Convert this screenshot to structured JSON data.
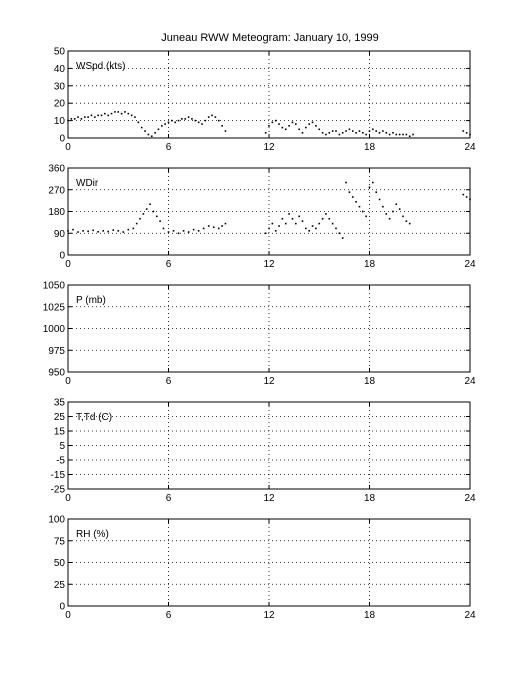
{
  "title": "Juneau RWW Meteogram:   January 10, 1999",
  "chart_data": [
    {
      "type": "scatter",
      "panel_label": "WSpd (kts)",
      "xlim": [
        0,
        24
      ],
      "x_ticks": [
        0,
        6,
        12,
        18,
        24
      ],
      "ylim": [
        0,
        50
      ],
      "y_ticks": [
        0,
        10,
        20,
        30,
        40,
        50
      ],
      "grid": true,
      "series": [
        {
          "points": [
            [
              0.0,
              10
            ],
            [
              0.2,
              11
            ],
            [
              0.4,
              11
            ],
            [
              0.6,
              12
            ],
            [
              0.8,
              11
            ],
            [
              1.0,
              12
            ],
            [
              1.2,
              12
            ],
            [
              1.4,
              13
            ],
            [
              1.6,
              12
            ],
            [
              1.8,
              13
            ],
            [
              2.0,
              13
            ],
            [
              2.2,
              14
            ],
            [
              2.4,
              13
            ],
            [
              2.6,
              14
            ],
            [
              2.8,
              15
            ],
            [
              3.0,
              15
            ],
            [
              3.2,
              14
            ],
            [
              3.4,
              15
            ],
            [
              3.6,
              14
            ],
            [
              3.8,
              13
            ],
            [
              4.0,
              12
            ],
            [
              4.2,
              9
            ],
            [
              4.4,
              6
            ],
            [
              4.6,
              4
            ],
            [
              4.8,
              2
            ],
            [
              5.0,
              1
            ],
            [
              5.2,
              3
            ],
            [
              5.4,
              5
            ],
            [
              5.6,
              7
            ],
            [
              5.8,
              8
            ],
            [
              6.0,
              9
            ],
            [
              6.2,
              10
            ],
            [
              6.4,
              9
            ],
            [
              6.6,
              10
            ],
            [
              6.8,
              11
            ],
            [
              7.0,
              11
            ],
            [
              7.2,
              12
            ],
            [
              7.4,
              11
            ],
            [
              7.6,
              10
            ],
            [
              7.8,
              9
            ],
            [
              8.0,
              8
            ],
            [
              8.2,
              10
            ],
            [
              8.4,
              12
            ],
            [
              8.6,
              13
            ],
            [
              8.8,
              12
            ],
            [
              9.0,
              10
            ],
            [
              9.2,
              7
            ],
            [
              9.4,
              4
            ],
            [
              11.8,
              3
            ],
            [
              12.0,
              7
            ],
            [
              12.2,
              9
            ],
            [
              12.4,
              10
            ],
            [
              12.6,
              8
            ],
            [
              12.8,
              6
            ],
            [
              13.0,
              5
            ],
            [
              13.2,
              7
            ],
            [
              13.4,
              9
            ],
            [
              13.6,
              8
            ],
            [
              13.8,
              5
            ],
            [
              14.0,
              3
            ],
            [
              14.2,
              6
            ],
            [
              14.4,
              8
            ],
            [
              14.6,
              9
            ],
            [
              14.8,
              7
            ],
            [
              15.0,
              5
            ],
            [
              15.2,
              3
            ],
            [
              15.4,
              2
            ],
            [
              15.6,
              3
            ],
            [
              15.8,
              4
            ],
            [
              16.0,
              4
            ],
            [
              16.2,
              2
            ],
            [
              16.4,
              3
            ],
            [
              16.6,
              4
            ],
            [
              16.8,
              5
            ],
            [
              17.0,
              4
            ],
            [
              17.2,
              3
            ],
            [
              17.4,
              4
            ],
            [
              17.6,
              3
            ],
            [
              17.8,
              2
            ],
            [
              18.0,
              4
            ],
            [
              18.2,
              5
            ],
            [
              18.4,
              4
            ],
            [
              18.6,
              3
            ],
            [
              18.8,
              4
            ],
            [
              19.0,
              3
            ],
            [
              19.2,
              2
            ],
            [
              19.4,
              3
            ],
            [
              19.6,
              2
            ],
            [
              19.8,
              2
            ],
            [
              20.0,
              2
            ],
            [
              20.2,
              2
            ],
            [
              20.4,
              1
            ],
            [
              20.6,
              2
            ],
            [
              23.6,
              4
            ],
            [
              23.8,
              3
            ],
            [
              24.0,
              2
            ]
          ]
        }
      ]
    },
    {
      "type": "scatter",
      "panel_label": "WDir",
      "xlim": [
        0,
        24
      ],
      "x_ticks": [
        0,
        6,
        12,
        18,
        24
      ],
      "ylim": [
        0,
        360
      ],
      "y_ticks": [
        0,
        90,
        180,
        270,
        360
      ],
      "grid": true,
      "series": [
        {
          "points": [
            [
              0.0,
              100
            ],
            [
              0.3,
              105
            ],
            [
              0.6,
              95
            ],
            [
              0.9,
              100
            ],
            [
              1.2,
              98
            ],
            [
              1.5,
              102
            ],
            [
              1.8,
              96
            ],
            [
              2.1,
              100
            ],
            [
              2.4,
              97
            ],
            [
              2.7,
              103
            ],
            [
              3.0,
              100
            ],
            [
              3.3,
              95
            ],
            [
              3.6,
              105
            ],
            [
              3.9,
              110
            ],
            [
              4.1,
              130
            ],
            [
              4.3,
              150
            ],
            [
              4.5,
              170
            ],
            [
              4.7,
              190
            ],
            [
              4.9,
              210
            ],
            [
              5.1,
              180
            ],
            [
              5.3,
              160
            ],
            [
              5.5,
              140
            ],
            [
              5.7,
              110
            ],
            [
              6.0,
              95
            ],
            [
              6.3,
              100
            ],
            [
              6.6,
              90
            ],
            [
              6.9,
              100
            ],
            [
              7.2,
              95
            ],
            [
              7.5,
              105
            ],
            [
              7.8,
              100
            ],
            [
              8.1,
              110
            ],
            [
              8.4,
              120
            ],
            [
              8.7,
              115
            ],
            [
              9.0,
              110
            ],
            [
              9.2,
              120
            ],
            [
              9.4,
              130
            ],
            [
              11.8,
              90
            ],
            [
              12.0,
              110
            ],
            [
              12.2,
              130
            ],
            [
              12.4,
              100
            ],
            [
              12.6,
              120
            ],
            [
              12.8,
              150
            ],
            [
              13.0,
              130
            ],
            [
              13.2,
              170
            ],
            [
              13.4,
              150
            ],
            [
              13.6,
              130
            ],
            [
              13.8,
              160
            ],
            [
              14.0,
              140
            ],
            [
              14.2,
              110
            ],
            [
              14.4,
              100
            ],
            [
              14.6,
              120
            ],
            [
              14.8,
              110
            ],
            [
              15.0,
              130
            ],
            [
              15.2,
              150
            ],
            [
              15.4,
              170
            ],
            [
              15.6,
              150
            ],
            [
              15.8,
              130
            ],
            [
              16.0,
              110
            ],
            [
              16.2,
              90
            ],
            [
              16.4,
              70
            ],
            [
              16.6,
              300
            ],
            [
              16.8,
              260
            ],
            [
              17.0,
              240
            ],
            [
              17.2,
              220
            ],
            [
              17.4,
              200
            ],
            [
              17.6,
              180
            ],
            [
              17.8,
              160
            ],
            [
              18.0,
              280
            ],
            [
              18.2,
              300
            ],
            [
              18.4,
              260
            ],
            [
              18.6,
              230
            ],
            [
              18.8,
              200
            ],
            [
              19.0,
              170
            ],
            [
              19.2,
              150
            ],
            [
              19.4,
              180
            ],
            [
              19.6,
              210
            ],
            [
              19.8,
              190
            ],
            [
              20.0,
              160
            ],
            [
              20.2,
              140
            ],
            [
              20.4,
              130
            ],
            [
              23.6,
              250
            ],
            [
              23.8,
              240
            ],
            [
              24.0,
              230
            ]
          ]
        }
      ]
    },
    {
      "type": "scatter",
      "panel_label": "P (mb)",
      "xlim": [
        0,
        24
      ],
      "x_ticks": [
        0,
        6,
        12,
        18,
        24
      ],
      "ylim": [
        950,
        1050
      ],
      "y_ticks": [
        950,
        975,
        1000,
        1025,
        1050
      ],
      "grid": true,
      "series": []
    },
    {
      "type": "scatter",
      "panel_label": "T,Td (C)",
      "xlim": [
        0,
        24
      ],
      "x_ticks": [
        0,
        6,
        12,
        18,
        24
      ],
      "ylim": [
        -25,
        35
      ],
      "y_ticks": [
        -25,
        -15,
        -5,
        5,
        15,
        25,
        35
      ],
      "grid": true,
      "series": []
    },
    {
      "type": "scatter",
      "panel_label": "RH (%)",
      "xlim": [
        0,
        24
      ],
      "x_ticks": [
        0,
        6,
        12,
        18,
        24
      ],
      "ylim": [
        0,
        100
      ],
      "y_ticks": [
        0,
        25,
        50,
        75,
        100
      ],
      "grid": true,
      "series": []
    }
  ]
}
